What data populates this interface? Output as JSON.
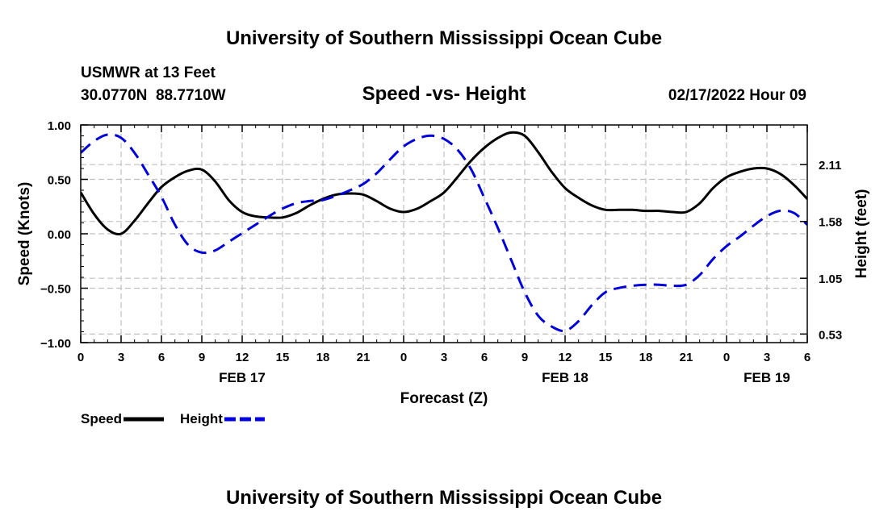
{
  "header": {
    "title": "University of Southern Mississippi Ocean Cube",
    "station": "USMWR at 13 Feet",
    "coords": "30.0770N  88.7710W",
    "subtitle": "Speed -vs- Height",
    "datetime": "02/17/2022 Hour 09"
  },
  "footer": {
    "title": "University of Southern Mississippi Ocean Cube"
  },
  "colors": {
    "speed": "#000000",
    "height": "#0000dd",
    "grid": "#c0c0c0"
  },
  "chart_data": {
    "type": "line",
    "title": "Speed -vs- Height",
    "xlabel": "Forecast (Z)",
    "ylabel": "Speed (Knots)",
    "y2label": "Height (feet)",
    "grid": true,
    "legend_position": "bottom-left",
    "xlim": [
      0,
      54
    ],
    "x_ticks": [
      0,
      3,
      6,
      9,
      12,
      15,
      18,
      21,
      24,
      27,
      30,
      33,
      36,
      39,
      42,
      45,
      48,
      51,
      54
    ],
    "x_tick_labels": [
      "0",
      "3",
      "6",
      "9",
      "12",
      "15",
      "18",
      "21",
      "0",
      "3",
      "6",
      "9",
      "12",
      "15",
      "18",
      "21",
      "0",
      "3",
      "6"
    ],
    "date_labels": [
      {
        "x": 12,
        "label": "FEB 17"
      },
      {
        "x": 36,
        "label": "FEB 18"
      },
      {
        "x": 51,
        "label": "FEB 19"
      }
    ],
    "ylim": [
      -1.0,
      1.0
    ],
    "y_ticks": [
      1.0,
      0.5,
      0.0,
      -0.5,
      -1.0
    ],
    "y_tick_labels": [
      "1.00",
      "0.50",
      "0.00",
      "−0.50",
      "−1.00"
    ],
    "y2lim": [
      0.45,
      2.48
    ],
    "y2_ticks": [
      2.11,
      1.58,
      1.05,
      0.53
    ],
    "y2_tick_labels": [
      "2.11",
      "1.58",
      "1.05",
      "0.53"
    ],
    "x": [
      0,
      1,
      2,
      3,
      4,
      5,
      6,
      7,
      8,
      9,
      10,
      11,
      12,
      13,
      14,
      15,
      16,
      17,
      18,
      19,
      20,
      21,
      22,
      23,
      24,
      25,
      26,
      27,
      28,
      29,
      30,
      31,
      32,
      33,
      34,
      35,
      36,
      37,
      38,
      39,
      40,
      41,
      42,
      43,
      44,
      45,
      46,
      47,
      48,
      49,
      50,
      51,
      52,
      53,
      54
    ],
    "series": [
      {
        "name": "Speed",
        "axis": "left",
        "style": "solid",
        "values": [
          0.38,
          0.18,
          0.04,
          0.0,
          0.12,
          0.28,
          0.43,
          0.52,
          0.58,
          0.59,
          0.48,
          0.31,
          0.2,
          0.16,
          0.15,
          0.15,
          0.19,
          0.26,
          0.32,
          0.36,
          0.37,
          0.36,
          0.3,
          0.23,
          0.2,
          0.23,
          0.3,
          0.38,
          0.52,
          0.67,
          0.79,
          0.88,
          0.93,
          0.9,
          0.75,
          0.57,
          0.42,
          0.33,
          0.26,
          0.22,
          0.22,
          0.22,
          0.21,
          0.21,
          0.2,
          0.2,
          0.28,
          0.42,
          0.52,
          0.57,
          0.6,
          0.6,
          0.55,
          0.45,
          0.32
        ]
      },
      {
        "name": "Height",
        "axis": "right",
        "style": "dashed",
        "values": [
          2.22,
          2.33,
          2.39,
          2.36,
          2.22,
          2.02,
          1.81,
          1.55,
          1.36,
          1.29,
          1.31,
          1.39,
          1.47,
          1.55,
          1.63,
          1.7,
          1.75,
          1.77,
          1.78,
          1.82,
          1.87,
          1.93,
          2.03,
          2.16,
          2.28,
          2.35,
          2.38,
          2.35,
          2.25,
          2.07,
          1.8,
          1.52,
          1.22,
          0.92,
          0.7,
          0.6,
          0.56,
          0.65,
          0.8,
          0.92,
          0.96,
          0.98,
          0.99,
          0.99,
          0.98,
          0.99,
          1.08,
          1.23,
          1.35,
          1.44,
          1.54,
          1.63,
          1.68,
          1.66,
          1.55
        ]
      }
    ],
    "legend": [
      {
        "name": "Speed",
        "style": "solid"
      },
      {
        "name": "Height",
        "style": "dashed"
      }
    ]
  }
}
